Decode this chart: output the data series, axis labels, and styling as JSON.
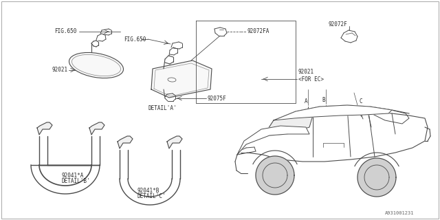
{
  "bg_color": "#ffffff",
  "line_color": "#4a4a4a",
  "text_color": "#2a2a2a",
  "fig_width": 6.4,
  "fig_height": 3.2,
  "dpi": 100,
  "labels": {
    "fig650_left": "FIG.650",
    "fig650_right": "FIG.650",
    "part_92021_left": "92021",
    "part_92021_right": "92021\n<FOR EC>",
    "part_92072fa": "92072FA",
    "part_92072f": "92072F",
    "part_92075f": "92075F",
    "detail_a": "DETAIL'A'",
    "part_92041a": "92041*A",
    "detail_b": "DETAIL'B'",
    "part_92041b": "92041*B",
    "detail_c": "DETAIL'C'",
    "ref_a": "A",
    "ref_b": "B",
    "ref_c": "C",
    "diagram_id": "A931001231"
  },
  "font_size": 5.5,
  "small_font": 5.0
}
